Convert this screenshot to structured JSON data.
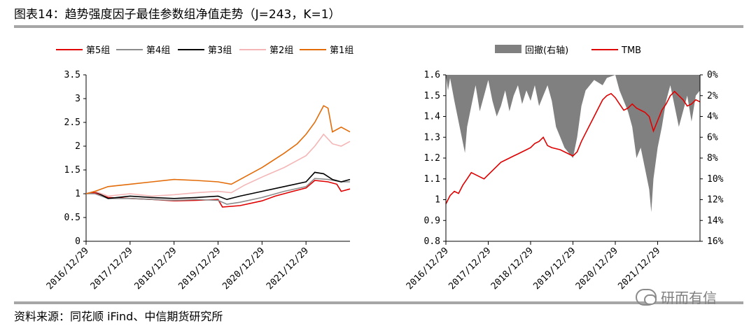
{
  "header": {
    "title": "图表14：趋势强度因子最佳参数组净值走势（J=243，K=1）"
  },
  "footer": {
    "source": "资料来源：同花顺 iFind、中信期货研究所",
    "watermark": "研而有信"
  },
  "chart_data": [
    {
      "type": "line",
      "x_ticks": [
        "2016/12/29",
        "2017/12/29",
        "2018/12/29",
        "2019/12/29",
        "2020/12/29",
        "2021/12/29"
      ],
      "ylim": [
        0,
        3.5
      ],
      "y_ticks": [
        "0",
        "0.5",
        "1",
        "1.5",
        "2",
        "2.5",
        "3",
        "3.5"
      ],
      "series": [
        {
          "name": "第5组",
          "color": "#e00000",
          "values": [
            [
              0,
              1.0
            ],
            [
              0.2,
              1.02
            ],
            [
              0.5,
              0.92
            ],
            [
              1.0,
              0.9
            ],
            [
              1.5,
              0.88
            ],
            [
              2.0,
              0.85
            ],
            [
              2.5,
              0.86
            ],
            [
              3.0,
              0.88
            ],
            [
              3.1,
              0.72
            ],
            [
              3.5,
              0.75
            ],
            [
              4.0,
              0.85
            ],
            [
              4.3,
              0.95
            ],
            [
              4.7,
              1.05
            ],
            [
              5.0,
              1.12
            ],
            [
              5.2,
              1.28
            ],
            [
              5.5,
              1.25
            ],
            [
              5.7,
              1.2
            ],
            [
              5.8,
              1.05
            ],
            [
              6.0,
              1.1
            ]
          ]
        },
        {
          "name": "第4组",
          "color": "#8c8c8c",
          "values": [
            [
              0,
              1.0
            ],
            [
              0.2,
              1.0
            ],
            [
              0.5,
              0.9
            ],
            [
              1.0,
              0.9
            ],
            [
              1.5,
              0.88
            ],
            [
              2.0,
              0.86
            ],
            [
              2.5,
              0.88
            ],
            [
              3.0,
              0.86
            ],
            [
              3.2,
              0.78
            ],
            [
              3.5,
              0.82
            ],
            [
              4.0,
              0.92
            ],
            [
              4.5,
              1.05
            ],
            [
              5.0,
              1.15
            ],
            [
              5.2,
              1.32
            ],
            [
              5.5,
              1.3
            ],
            [
              5.8,
              1.25
            ],
            [
              6.0,
              1.25
            ]
          ]
        },
        {
          "name": "第3组",
          "color": "#000000",
          "values": [
            [
              0,
              1.0
            ],
            [
              0.2,
              1.05
            ],
            [
              0.5,
              0.9
            ],
            [
              1.0,
              0.95
            ],
            [
              1.5,
              0.92
            ],
            [
              2.0,
              0.9
            ],
            [
              2.5,
              0.92
            ],
            [
              3.0,
              0.95
            ],
            [
              3.2,
              0.88
            ],
            [
              3.5,
              0.95
            ],
            [
              4.0,
              1.05
            ],
            [
              4.5,
              1.15
            ],
            [
              5.0,
              1.25
            ],
            [
              5.2,
              1.45
            ],
            [
              5.4,
              1.42
            ],
            [
              5.6,
              1.3
            ],
            [
              5.8,
              1.25
            ],
            [
              6.0,
              1.3
            ]
          ]
        },
        {
          "name": "第2组",
          "color": "#f4b6b6",
          "values": [
            [
              0,
              1.0
            ],
            [
              0.2,
              1.05
            ],
            [
              0.5,
              0.95
            ],
            [
              1.0,
              1.0
            ],
            [
              1.5,
              0.95
            ],
            [
              2.0,
              0.98
            ],
            [
              2.5,
              1.02
            ],
            [
              3.0,
              1.05
            ],
            [
              3.3,
              1.02
            ],
            [
              3.6,
              1.18
            ],
            [
              4.0,
              1.35
            ],
            [
              4.5,
              1.55
            ],
            [
              4.8,
              1.7
            ],
            [
              5.0,
              1.8
            ],
            [
              5.2,
              2.0
            ],
            [
              5.4,
              2.25
            ],
            [
              5.6,
              2.05
            ],
            [
              5.8,
              2.0
            ],
            [
              6.0,
              2.1
            ]
          ]
        },
        {
          "name": "第1组",
          "color": "#e36c09",
          "values": [
            [
              0,
              1.0
            ],
            [
              0.2,
              1.05
            ],
            [
              0.5,
              1.15
            ],
            [
              1.0,
              1.2
            ],
            [
              1.5,
              1.25
            ],
            [
              2.0,
              1.3
            ],
            [
              2.5,
              1.28
            ],
            [
              3.0,
              1.25
            ],
            [
              3.3,
              1.2
            ],
            [
              3.6,
              1.35
            ],
            [
              4.0,
              1.55
            ],
            [
              4.5,
              1.85
            ],
            [
              4.8,
              2.05
            ],
            [
              5.0,
              2.25
            ],
            [
              5.2,
              2.5
            ],
            [
              5.4,
              2.85
            ],
            [
              5.5,
              2.8
            ],
            [
              5.6,
              2.3
            ],
            [
              5.8,
              2.4
            ],
            [
              6.0,
              2.3
            ]
          ]
        }
      ]
    },
    {
      "type": "line",
      "x_ticks": [
        "2016/12/29",
        "2017/12/29",
        "2018/12/29",
        "2019/12/29",
        "2020/12/29",
        "2021/12/29"
      ],
      "ylim": [
        0.8,
        1.6
      ],
      "y_ticks": [
        "0.8",
        "0.9",
        "1",
        "1.1",
        "1.2",
        "1.3",
        "1.4",
        "1.5",
        "1.6"
      ],
      "y2lim": [
        0,
        16
      ],
      "y2_ticks": [
        "0%",
        "2%",
        "4%",
        "6%",
        "8%",
        "10%",
        "12%",
        "14%",
        "16%"
      ],
      "series": [
        {
          "name": "回撤(右轴)",
          "type": "area",
          "axis": "right",
          "color": "#808080",
          "values": [
            [
              0,
              0
            ],
            [
              0.05,
              1.5
            ],
            [
              0.1,
              0.3
            ],
            [
              0.2,
              2.5
            ],
            [
              0.3,
              4.5
            ],
            [
              0.4,
              6.5
            ],
            [
              0.45,
              7.5
            ],
            [
              0.5,
              5.0
            ],
            [
              0.6,
              3.0
            ],
            [
              0.7,
              1.0
            ],
            [
              0.8,
              3.5
            ],
            [
              0.9,
              2.0
            ],
            [
              1.0,
              0.5
            ],
            [
              1.1,
              2.5
            ],
            [
              1.2,
              4.0
            ],
            [
              1.3,
              3.0
            ],
            [
              1.4,
              1.5
            ],
            [
              1.5,
              3.5
            ],
            [
              1.6,
              2.0
            ],
            [
              1.7,
              1.0
            ],
            [
              1.8,
              2.8
            ],
            [
              1.9,
              1.5
            ],
            [
              2.0,
              2.5
            ],
            [
              2.1,
              1.0
            ],
            [
              2.2,
              3.0
            ],
            [
              2.3,
              2.0
            ],
            [
              2.4,
              1.0
            ],
            [
              2.5,
              2.5
            ],
            [
              2.6,
              5.0
            ],
            [
              2.7,
              6.0
            ],
            [
              2.8,
              7.0
            ],
            [
              2.9,
              7.5
            ],
            [
              3.0,
              8.0
            ],
            [
              3.05,
              7.0
            ],
            [
              3.1,
              6.0
            ],
            [
              3.2,
              3.0
            ],
            [
              3.3,
              1.5
            ],
            [
              3.5,
              0.5
            ],
            [
              3.7,
              1.0
            ],
            [
              3.8,
              0.3
            ],
            [
              4.0,
              0
            ],
            [
              4.1,
              1.5
            ],
            [
              4.2,
              2.5
            ],
            [
              4.3,
              3.5
            ],
            [
              4.4,
              5.0
            ],
            [
              4.5,
              8.0
            ],
            [
              4.6,
              7.0
            ],
            [
              4.7,
              9.0
            ],
            [
              4.8,
              11.0
            ],
            [
              4.85,
              13.2
            ],
            [
              4.9,
              10.0
            ],
            [
              5.0,
              7.0
            ],
            [
              5.1,
              5.0
            ],
            [
              5.2,
              2.5
            ],
            [
              5.3,
              1.0
            ],
            [
              5.4,
              3.0
            ],
            [
              5.5,
              5.0
            ],
            [
              5.6,
              3.5
            ],
            [
              5.7,
              2.0
            ],
            [
              5.8,
              4.5
            ],
            [
              5.9,
              2.0
            ],
            [
              6.0,
              1.5
            ]
          ]
        },
        {
          "name": "TMB",
          "type": "line",
          "axis": "left",
          "color": "#e00000",
          "values": [
            [
              0,
              0.98
            ],
            [
              0.1,
              1.02
            ],
            [
              0.2,
              1.04
            ],
            [
              0.3,
              1.03
            ],
            [
              0.4,
              1.07
            ],
            [
              0.5,
              1.1
            ],
            [
              0.6,
              1.13
            ],
            [
              0.7,
              1.12
            ],
            [
              0.8,
              1.11
            ],
            [
              0.9,
              1.1
            ],
            [
              1.0,
              1.12
            ],
            [
              1.1,
              1.14
            ],
            [
              1.2,
              1.16
            ],
            [
              1.3,
              1.18
            ],
            [
              1.4,
              1.19
            ],
            [
              1.5,
              1.2
            ],
            [
              1.6,
              1.21
            ],
            [
              1.7,
              1.22
            ],
            [
              1.8,
              1.23
            ],
            [
              1.9,
              1.24
            ],
            [
              2.0,
              1.25
            ],
            [
              2.1,
              1.27
            ],
            [
              2.2,
              1.28
            ],
            [
              2.3,
              1.3
            ],
            [
              2.4,
              1.26
            ],
            [
              2.5,
              1.25
            ],
            [
              2.7,
              1.24
            ],
            [
              2.8,
              1.23
            ],
            [
              2.9,
              1.22
            ],
            [
              3.0,
              1.21
            ],
            [
              3.1,
              1.23
            ],
            [
              3.2,
              1.28
            ],
            [
              3.3,
              1.32
            ],
            [
              3.4,
              1.36
            ],
            [
              3.5,
              1.4
            ],
            [
              3.6,
              1.44
            ],
            [
              3.7,
              1.48
            ],
            [
              3.8,
              1.5
            ],
            [
              3.9,
              1.51
            ],
            [
              4.0,
              1.49
            ],
            [
              4.1,
              1.46
            ],
            [
              4.2,
              1.43
            ],
            [
              4.3,
              1.44
            ],
            [
              4.4,
              1.46
            ],
            [
              4.5,
              1.44
            ],
            [
              4.6,
              1.43
            ],
            [
              4.7,
              1.42
            ],
            [
              4.8,
              1.4
            ],
            [
              4.9,
              1.33
            ],
            [
              5.0,
              1.38
            ],
            [
              5.1,
              1.43
            ],
            [
              5.2,
              1.46
            ],
            [
              5.3,
              1.5
            ],
            [
              5.4,
              1.52
            ],
            [
              5.5,
              1.5
            ],
            [
              5.6,
              1.48
            ],
            [
              5.7,
              1.45
            ],
            [
              5.8,
              1.46
            ],
            [
              5.9,
              1.48
            ],
            [
              6.0,
              1.47
            ]
          ]
        }
      ]
    }
  ]
}
